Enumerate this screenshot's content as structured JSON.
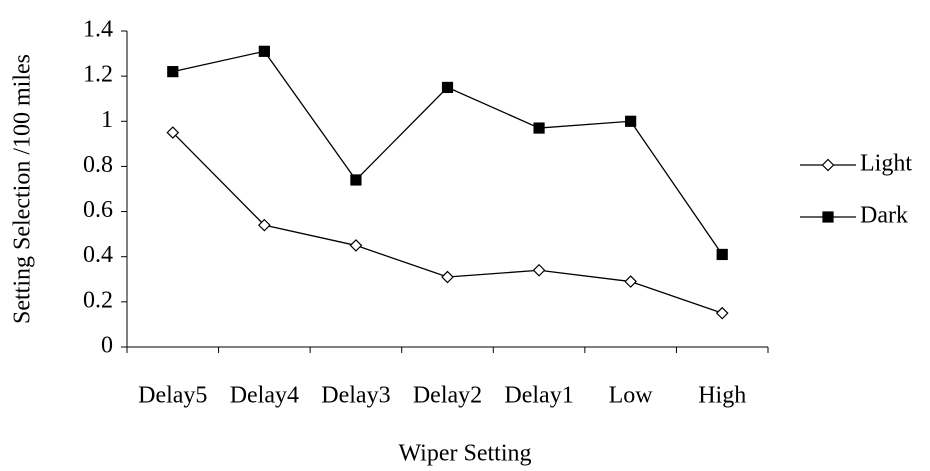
{
  "chart_data": {
    "type": "line",
    "xlabel": "Wiper Setting",
    "ylabel": "Setting Selection /100 miles",
    "categories": [
      "Delay5",
      "Delay4",
      "Delay3",
      "Delay2",
      "Delay1",
      "Low",
      "High"
    ],
    "series": [
      {
        "name": "Light",
        "color": "#000000",
        "marker": "diamond",
        "marker_fill": "#ffffff",
        "values": [
          0.95,
          0.54,
          0.45,
          0.31,
          0.34,
          0.29,
          0.15
        ]
      },
      {
        "name": "Dark",
        "color": "#000000",
        "marker": "square",
        "marker_fill": "#000000",
        "values": [
          1.22,
          1.31,
          0.74,
          1.15,
          0.97,
          1.0,
          0.41
        ]
      }
    ],
    "ylim": [
      0,
      1.4
    ],
    "yticks": [
      0,
      0.2,
      0.4,
      0.6,
      0.8,
      1,
      1.2,
      1.4
    ],
    "grid": false,
    "legend": "right"
  }
}
